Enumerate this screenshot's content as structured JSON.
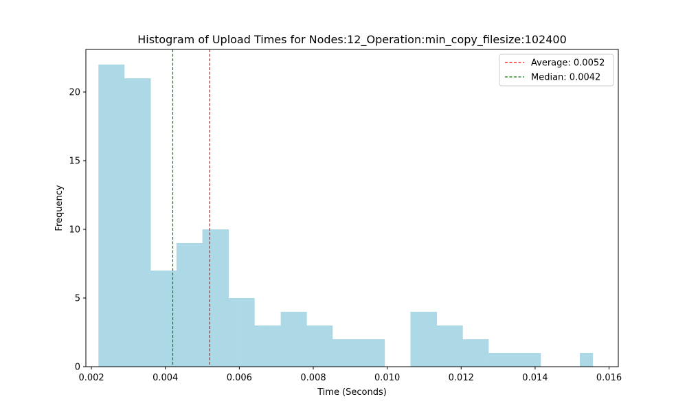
{
  "chart_data": {
    "type": "bar",
    "title": "Histogram of Upload Times for Nodes:12_Operation:min_copy_filesize:102400",
    "xlabel": "Time (Seconds)",
    "ylabel": "Frequency",
    "xlim": [
      0.00185,
      0.01625
    ],
    "ylim": [
      0,
      23.1
    ],
    "xticks": [
      0.002,
      0.004,
      0.006,
      0.008,
      0.01,
      0.012,
      0.014,
      0.016
    ],
    "xtick_labels": [
      "0.002",
      "0.004",
      "0.006",
      "0.008",
      "0.010",
      "0.012",
      "0.014",
      "0.016"
    ],
    "yticks": [
      0,
      5,
      10,
      15,
      20
    ],
    "ytick_labels": [
      "0",
      "5",
      "10",
      "15",
      "20"
    ],
    "bin_edges": [
      0.00219,
      0.00254,
      0.00289,
      0.00325,
      0.0036,
      0.00395,
      0.0043,
      0.00465,
      0.005,
      0.00536,
      0.00571,
      0.00606,
      0.00641,
      0.00676,
      0.00712,
      0.00747,
      0.00782,
      0.00817,
      0.00852,
      0.00887,
      0.00923,
      0.00958,
      0.00993,
      0.01028,
      0.01063,
      0.01098,
      0.01134,
      0.01169,
      0.01204,
      0.01239,
      0.01274,
      0.0131,
      0.01345,
      0.0138,
      0.01415,
      0.0145,
      0.01485,
      0.01521,
      0.01556
    ],
    "counts": [
      22,
      22,
      21,
      21,
      7,
      7,
      9,
      9,
      10,
      10,
      5,
      5,
      3,
      3,
      4,
      4,
      3,
      3,
      2,
      2,
      2,
      2,
      0,
      0,
      4,
      4,
      3,
      3,
      2,
      2,
      1,
      1,
      1,
      1,
      0,
      0,
      0,
      1
    ],
    "bar_color": "#add8e6",
    "lines": [
      {
        "name": "Average: 0.0052",
        "x": 0.0052,
        "color": "#ff0000"
      },
      {
        "name": "Median: 0.0042",
        "x": 0.0042,
        "color": "#008000"
      }
    ],
    "legend_position": "upper right",
    "grid": false
  }
}
